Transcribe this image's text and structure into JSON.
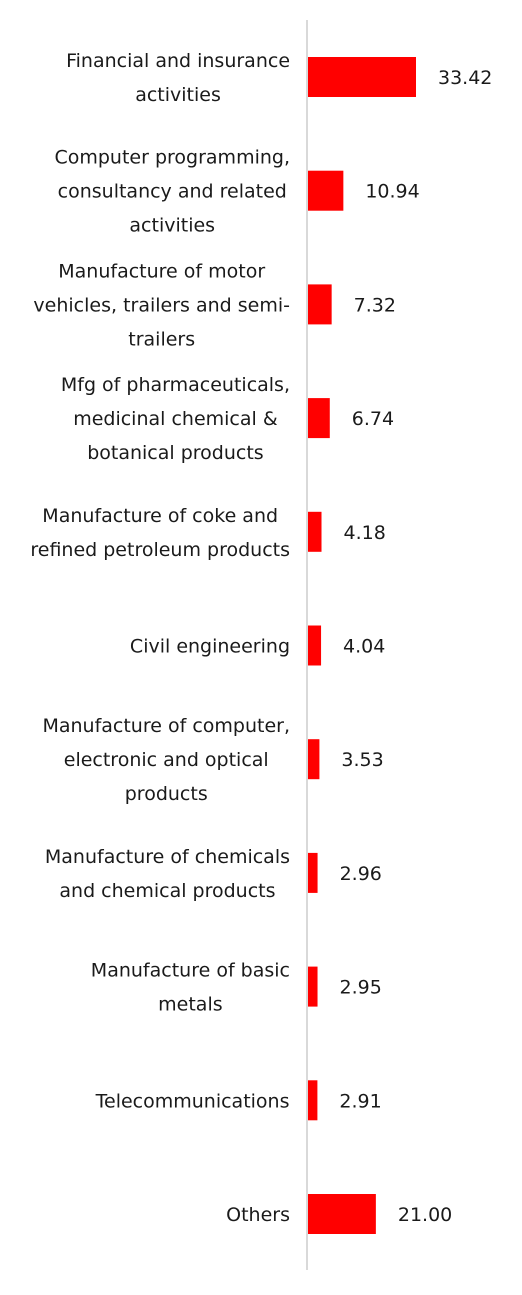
{
  "chart_data": {
    "type": "bar",
    "orientation": "horizontal",
    "categories": [
      "Financial and insurance activities",
      "Computer programming, consultancy and related activities",
      "Manufacture of motor vehicles, trailers and semi-trailers",
      "Mfg of pharmaceuticals, medicinal chemical & botanical products",
      "Manufacture of coke and refined petroleum products",
      "Civil engineering",
      "Manufacture of computer, electronic and optical products",
      "Manufacture of chemicals and chemical products",
      "Manufacture of basic metals",
      "Telecommunications",
      "Others"
    ],
    "label_lines": [
      [
        "Financial and insurance",
        "activities"
      ],
      [
        "Computer programming,",
        "consultancy and related",
        "activities"
      ],
      [
        "Manufacture of motor",
        "vehicles, trailers and semi-",
        "trailers"
      ],
      [
        "Mfg of pharmaceuticals,",
        "medicinal chemical &",
        "botanical products"
      ],
      [
        "Manufacture of coke and",
        "refined petroleum products"
      ],
      [
        "Civil engineering"
      ],
      [
        "Manufacture of computer,",
        "electronic and optical",
        "products"
      ],
      [
        "Manufacture of chemicals",
        "and chemical products"
      ],
      [
        "Manufacture of basic",
        "metals"
      ],
      [
        "Telecommunications"
      ],
      [
        "Others"
      ]
    ],
    "values": [
      33.42,
      10.94,
      7.32,
      6.74,
      4.18,
      4.04,
      3.53,
      2.96,
      2.95,
      2.91,
      21.0
    ],
    "value_labels": [
      "33.42",
      "10.94",
      "7.32",
      "6.74",
      "4.18",
      "4.04",
      "3.53",
      "2.96",
      "2.95",
      "2.91",
      "21.00"
    ],
    "xlim": [
      0,
      33.42
    ],
    "grid": false,
    "legend": "none",
    "bar_color": "#ff0000",
    "axis_color": "#d9d9d9"
  }
}
